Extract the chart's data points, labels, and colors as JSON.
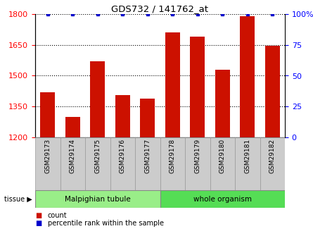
{
  "title": "GDS732 / 141762_at",
  "samples": [
    "GSM29173",
    "GSM29174",
    "GSM29175",
    "GSM29176",
    "GSM29177",
    "GSM29178",
    "GSM29179",
    "GSM29180",
    "GSM29181",
    "GSM29182"
  ],
  "counts": [
    1420,
    1300,
    1570,
    1405,
    1390,
    1710,
    1690,
    1530,
    1790,
    1645
  ],
  "percentiles": [
    100,
    100,
    100,
    100,
    100,
    100,
    100,
    100,
    100,
    100
  ],
  "tissue_groups": [
    {
      "label": "Malpighian tubule",
      "start": 0,
      "end": 5,
      "color": "#99ee88"
    },
    {
      "label": "whole organism",
      "start": 5,
      "end": 10,
      "color": "#55dd55"
    }
  ],
  "bar_color": "#cc1100",
  "dot_color": "#0000cc",
  "ymin": 1200,
  "ymax": 1800,
  "yticks": [
    1200,
    1350,
    1500,
    1650,
    1800
  ],
  "y2min": 0,
  "y2max": 100,
  "y2ticks": [
    0,
    25,
    50,
    75,
    100
  ],
  "y2ticklabels": [
    "0",
    "25",
    "50",
    "75",
    "100%"
  ],
  "left_tick_color": "red",
  "right_tick_color": "blue",
  "tick_label_bg": "#cccccc",
  "legend_count_color": "#cc1100",
  "legend_pct_color": "#0000cc",
  "tissue_border_color": "#888888",
  "tissue_label_lighter": "#aaffaa",
  "tissue_label_darker": "#66ee66"
}
